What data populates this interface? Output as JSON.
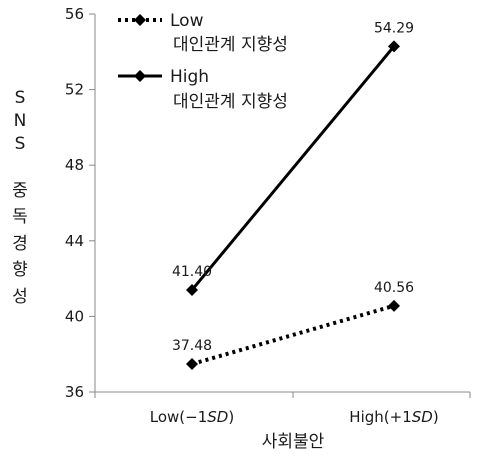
{
  "chart_data": {
    "type": "line",
    "categories": [
      "Low(−1SD)",
      "High(+1SD)"
    ],
    "category_parts": [
      {
        "prefix": "Low(−1",
        "sd": "SD",
        "suffix": ")"
      },
      {
        "prefix": "High(+1",
        "sd": "SD",
        "suffix": ")"
      }
    ],
    "series": [
      {
        "name": "Low 대인관계 지향성",
        "legend_line1": "Low",
        "legend_line2": "대인관계 지향성",
        "values": [
          37.48,
          40.56
        ],
        "labels": [
          "37.48",
          "40.56"
        ],
        "style": "dotted",
        "color": "#000000"
      },
      {
        "name": "High 대인관계 지향성",
        "legend_line1": "High",
        "legend_line2": "대인관계 지향성",
        "values": [
          41.4,
          54.29
        ],
        "labels": [
          "41.40",
          "54.29"
        ],
        "style": "solid",
        "color": "#000000"
      }
    ],
    "xlabel": "사회불안",
    "ylabel": "SNS 중독경향성",
    "ylabel_parts": [
      "S",
      "N",
      "S",
      "중",
      "독",
      "경",
      "향",
      "성"
    ],
    "ylim": [
      36,
      56
    ],
    "yticks": [
      36,
      40,
      44,
      48,
      52,
      56
    ],
    "ytick_labels": [
      "36",
      "40",
      "44",
      "48",
      "52",
      "56"
    ],
    "legend_position": "top-left",
    "grid": false
  }
}
